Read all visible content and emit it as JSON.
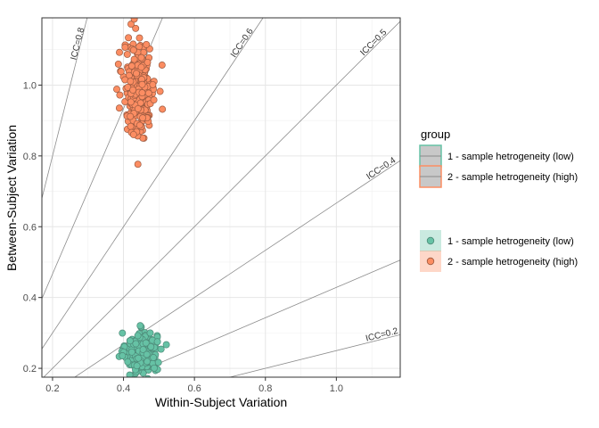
{
  "chart_data": {
    "type": "scatter",
    "xlabel": "Within-Subject Variation",
    "ylabel": "Between-Subject Variation",
    "xlim": [
      0.17,
      1.18
    ],
    "ylim": [
      0.175,
      1.19
    ],
    "x_ticks": [
      0.2,
      0.4,
      0.6,
      0.8,
      1.0
    ],
    "x_tick_labels": [
      "0.2",
      "0.4",
      "0.6",
      "0.8",
      "1.0"
    ],
    "y_ticks": [
      0.2,
      0.4,
      0.6,
      0.8,
      1.0
    ],
    "y_tick_labels": [
      "0.2",
      "0.4",
      "0.6",
      "0.8",
      "1.0"
    ],
    "grid": true,
    "legend_position": "right",
    "icc_lines": [
      {
        "icc": 0.2,
        "label": "ICC=0.2"
      },
      {
        "icc": 0.3,
        "label": ""
      },
      {
        "icc": 0.4,
        "label": "ICC=0.4"
      },
      {
        "icc": 0.5,
        "label": "ICC=0.5"
      },
      {
        "icc": 0.6,
        "label": "ICC=0.6"
      },
      {
        "icc": 0.7,
        "label": ""
      },
      {
        "icc": 0.8,
        "label": "ICC=0.8"
      }
    ],
    "series": [
      {
        "name": "1 - sample hetrogeneity (low)",
        "color": "#66c2a5",
        "stroke": "#4d8a78",
        "x_mean": 0.45,
        "x_sd": 0.022,
        "y_mean": 0.245,
        "y_sd": 0.028,
        "n": 300
      },
      {
        "name": "2 - sample hetrogeneity (high)",
        "color": "#fc8d62",
        "stroke": "#9b5a40",
        "x_mean": 0.445,
        "x_sd": 0.022,
        "y_mean": 0.99,
        "y_sd": 0.065,
        "n": 300
      }
    ],
    "legend": {
      "title": "group",
      "line_entries": [
        "1 - sample hetrogeneity (low)",
        "2 - sample hetrogeneity (high)"
      ],
      "point_entries": [
        "1 - sample hetrogeneity (low)",
        "2 - sample hetrogeneity (high)"
      ]
    }
  }
}
